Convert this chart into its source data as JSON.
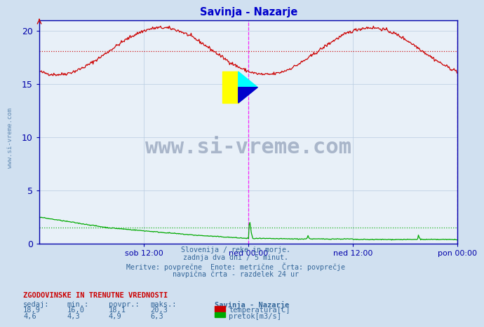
{
  "title": "Savinja - Nazarje",
  "bg_color": "#d0e0f0",
  "plot_bg_color": "#e8f0f8",
  "grid_color": "#b8cce0",
  "title_color": "#0000cc",
  "axis_color": "#0000aa",
  "text_color": "#336699",
  "ylim": [
    0,
    21
  ],
  "yticks": [
    0,
    5,
    10,
    15,
    20
  ],
  "xtick_labels": [
    "sob 12:00",
    "ned 00:00",
    "ned 12:00",
    "pon 00:00"
  ],
  "temp_avg": 18.1,
  "flow_avg": 4.9,
  "watermark_text": "www.si-vreme.com",
  "watermark_color": "#1a3060",
  "watermark_alpha": 0.3,
  "footer_lines": [
    "Slovenija / reke in morje.",
    "zadnja dva dni / 5 minut.",
    "Meritve: povprečne  Enote: metrične  Črta: povprečje",
    "navpična črta - razdelek 24 ur"
  ],
  "table_header": "ZGODOVINSKE IN TRENUTNE VREDNOSTI",
  "table_cols": [
    "sedaj:",
    "min.:",
    "povpr.:",
    "maks.:"
  ],
  "table_data_row1": [
    "18,9",
    "16,0",
    "18,1",
    "20,3"
  ],
  "table_data_row2": [
    "4,6",
    "4,3",
    "4,9",
    "6,3"
  ],
  "legend_labels": [
    "temperatura[C]",
    "pretok[m3/s]"
  ],
  "legend_colors": [
    "#cc0000",
    "#00aa00"
  ],
  "station_label": "Savinja - Nazarje",
  "temp_color": "#cc0000",
  "flow_color": "#00aa00",
  "vline_color": "#ff00ff",
  "avg_line_color_temp": "#cc0000",
  "avg_line_color_flow": "#00aa00"
}
